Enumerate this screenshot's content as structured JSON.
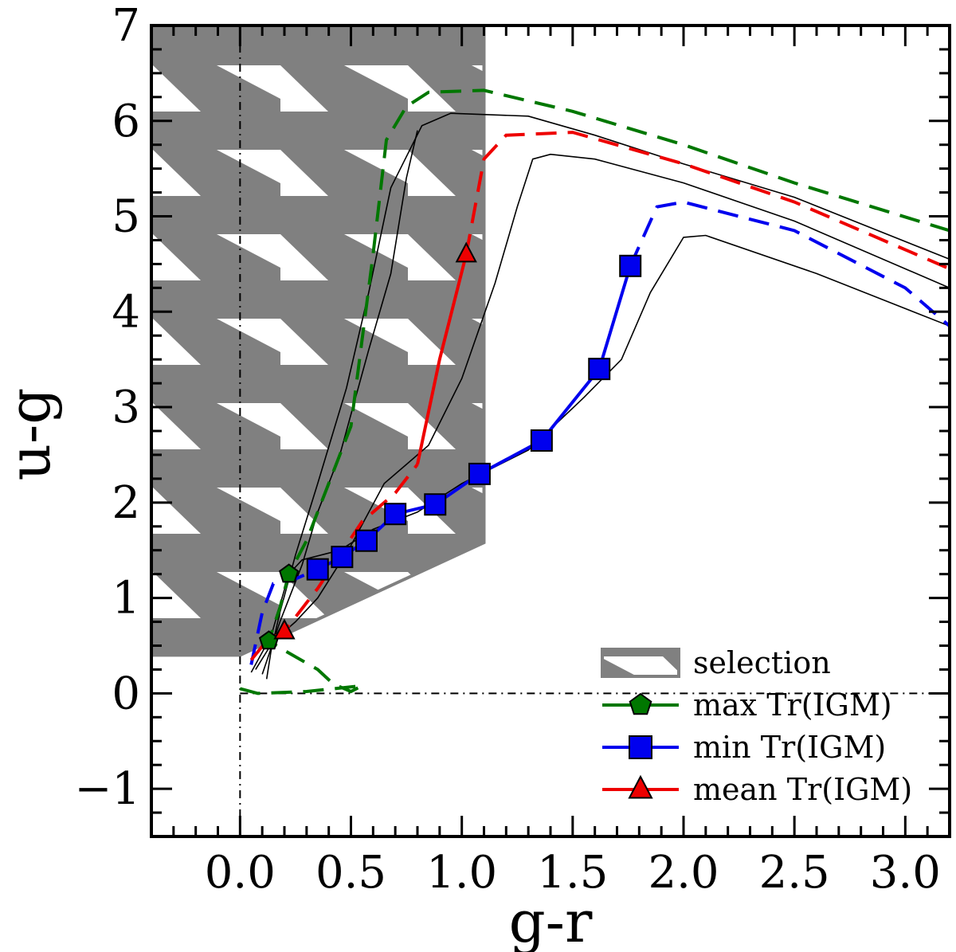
{
  "chart_data": {
    "type": "line",
    "title": "",
    "xlabel": "g-r",
    "ylabel": "u-g",
    "xlim": [
      -0.4,
      3.2
    ],
    "ylim": [
      -1.5,
      7
    ],
    "xticks": [
      0.0,
      0.5,
      1.0,
      1.5,
      2.0,
      2.5,
      3.0
    ],
    "xtick_labels": [
      "0.0",
      "0.5",
      "1.0",
      "1.5",
      "2.0",
      "2.5",
      "3.0"
    ],
    "yticks": [
      -1,
      0,
      1,
      2,
      3,
      4,
      5,
      6,
      7
    ],
    "ytick_labels": [
      "−1",
      "0",
      "1",
      "2",
      "3",
      "4",
      "5",
      "6",
      "7"
    ],
    "reference_lines": {
      "x_zero": 0,
      "y_zero": 0
    },
    "selection_region": {
      "label": "selection",
      "fill": "#808080",
      "polygon": [
        [
          -0.4,
          7.0
        ],
        [
          1.1,
          7.0
        ],
        [
          1.1,
          1.58
        ],
        [
          0.0,
          0.4
        ],
        [
          -0.4,
          0.4
        ]
      ]
    },
    "series": [
      {
        "name": "max Tr(IGM)",
        "color": "#007700",
        "marker": "pentagon",
        "dashed": [
          [
            0.0,
            0.05
          ],
          [
            0.08,
            0.0
          ],
          [
            0.3,
            0.02
          ],
          [
            0.55,
            0.08
          ],
          [
            0.5,
            0.02
          ],
          [
            0.42,
            0.1
          ],
          [
            0.35,
            0.25
          ],
          [
            0.2,
            0.45
          ],
          [
            0.13,
            0.55
          ],
          [
            0.18,
            0.9
          ],
          [
            0.22,
            1.25
          ],
          [
            0.3,
            1.6
          ],
          [
            0.5,
            2.8
          ],
          [
            0.6,
            4.6
          ],
          [
            0.66,
            5.8
          ],
          [
            0.75,
            6.15
          ],
          [
            0.85,
            6.3
          ],
          [
            1.1,
            6.32
          ],
          [
            1.5,
            6.1
          ],
          [
            2.0,
            5.75
          ],
          [
            2.5,
            5.35
          ],
          [
            3.2,
            4.85
          ]
        ],
        "markers": [
          [
            0.13,
            0.55
          ],
          [
            0.22,
            1.25
          ]
        ]
      },
      {
        "name": "min Tr(IGM)",
        "color": "#0000ee",
        "marker": "square",
        "solid": [
          [
            0.35,
            1.3
          ],
          [
            0.46,
            1.43
          ],
          [
            0.57,
            1.6
          ],
          [
            0.7,
            1.88
          ],
          [
            0.88,
            1.98
          ],
          [
            1.08,
            2.3
          ],
          [
            1.36,
            2.65
          ],
          [
            1.62,
            3.4
          ],
          [
            1.76,
            4.48
          ]
        ],
        "dashed": [
          [
            0.05,
            0.3
          ],
          [
            0.1,
            0.85
          ],
          [
            0.15,
            1.15
          ],
          [
            0.25,
            1.2
          ],
          [
            0.35,
            1.3
          ]
        ],
        "dashed_tail": [
          [
            1.76,
            4.48
          ],
          [
            1.88,
            5.1
          ],
          [
            2.0,
            5.15
          ],
          [
            2.5,
            4.85
          ],
          [
            3.0,
            4.25
          ],
          [
            3.2,
            3.85
          ]
        ],
        "markers": [
          [
            0.35,
            1.3
          ],
          [
            0.46,
            1.43
          ],
          [
            0.57,
            1.6
          ],
          [
            0.7,
            1.88
          ],
          [
            0.88,
            1.98
          ],
          [
            1.08,
            2.3
          ],
          [
            1.36,
            2.65
          ],
          [
            1.62,
            3.4
          ],
          [
            1.76,
            4.48
          ]
        ]
      },
      {
        "name": "mean Tr(IGM)",
        "color": "#ee0000",
        "marker": "triangle",
        "solid": [
          [
            0.8,
            2.4
          ],
          [
            0.9,
            3.5
          ],
          [
            1.02,
            4.6
          ]
        ],
        "dashed": [
          [
            0.05,
            0.35
          ],
          [
            0.12,
            0.55
          ],
          [
            0.2,
            0.65
          ],
          [
            0.35,
            1.1
          ],
          [
            0.55,
            1.8
          ],
          [
            0.7,
            2.1
          ],
          [
            0.8,
            2.4
          ]
        ],
        "dashed_tail": [
          [
            1.02,
            4.6
          ],
          [
            1.1,
            5.6
          ],
          [
            1.2,
            5.85
          ],
          [
            1.5,
            5.88
          ],
          [
            2.0,
            5.55
          ],
          [
            2.5,
            5.15
          ],
          [
            3.2,
            4.45
          ]
        ],
        "markers": [
          [
            0.2,
            0.65
          ],
          [
            1.02,
            4.6
          ]
        ]
      }
    ],
    "reference_tracks": [
      [
        [
          0.12,
          0.15
        ],
        [
          0.14,
          0.45
        ],
        [
          0.18,
          0.85
        ],
        [
          0.25,
          1.45
        ],
        [
          0.35,
          2.2
        ],
        [
          0.48,
          3.2
        ],
        [
          0.58,
          4.2
        ],
        [
          0.68,
          5.3
        ],
        [
          0.82,
          5.95
        ],
        [
          0.95,
          6.08
        ],
        [
          1.3,
          6.05
        ],
        [
          1.6,
          5.85
        ],
        [
          2.0,
          5.55
        ],
        [
          2.5,
          5.2
        ],
        [
          3.2,
          4.55
        ]
      ],
      [
        [
          0.07,
          0.25
        ],
        [
          0.15,
          0.55
        ],
        [
          0.25,
          0.75
        ],
        [
          0.35,
          1.0
        ],
        [
          0.5,
          1.55
        ],
        [
          0.65,
          2.2
        ],
        [
          0.85,
          2.6
        ],
        [
          1.0,
          3.3
        ],
        [
          1.15,
          4.3
        ],
        [
          1.25,
          5.1
        ],
        [
          1.32,
          5.6
        ],
        [
          1.4,
          5.65
        ],
        [
          1.6,
          5.6
        ],
        [
          2.0,
          5.35
        ],
        [
          2.5,
          4.95
        ],
        [
          3.2,
          4.25
        ]
      ],
      [
        [
          0.05,
          0.22
        ],
        [
          0.14,
          0.6
        ],
        [
          0.22,
          1.25
        ],
        [
          0.28,
          1.4
        ],
        [
          0.45,
          1.5
        ],
        [
          0.6,
          1.72
        ],
        [
          0.8,
          1.9
        ],
        [
          1.0,
          2.2
        ],
        [
          1.3,
          2.55
        ],
        [
          1.55,
          3.1
        ],
        [
          1.72,
          3.5
        ],
        [
          1.85,
          4.2
        ],
        [
          2.0,
          4.78
        ],
        [
          2.1,
          4.8
        ],
        [
          2.6,
          4.4
        ],
        [
          3.2,
          3.85
        ]
      ],
      [
        [
          0.1,
          0.2
        ],
        [
          0.18,
          0.75
        ],
        [
          0.28,
          1.35
        ],
        [
          0.35,
          1.9
        ],
        [
          0.45,
          2.5
        ],
        [
          0.58,
          3.6
        ],
        [
          0.68,
          4.4
        ],
        [
          0.75,
          5.4
        ],
        [
          0.8,
          5.9
        ]
      ]
    ],
    "legend": {
      "position": "bottom-right",
      "entries": [
        {
          "label": "selection",
          "kind": "patch",
          "color": "#808080"
        },
        {
          "label": "max Tr(IGM)",
          "kind": "line",
          "color": "#007700",
          "marker": "pentagon"
        },
        {
          "label": "min Tr(IGM)",
          "kind": "line",
          "color": "#0000ee",
          "marker": "square"
        },
        {
          "label": "mean Tr(IGM)",
          "kind": "line",
          "color": "#ee0000",
          "marker": "triangle"
        }
      ]
    }
  }
}
